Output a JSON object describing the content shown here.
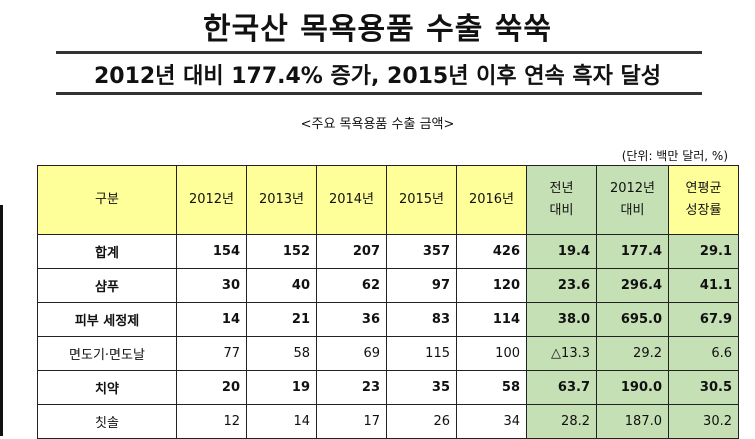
{
  "title": "한국산 목욕용품 수출 쑥쑥",
  "subtitle": "2012년 대비 177.4% 증가, 2015년 이후 연속 흑자 달성",
  "caption": "<주요 목욕용품 수출 금액>",
  "unit_note": "(단위: 백만 달러, %)",
  "table": {
    "headers": [
      "구분",
      "2012년",
      "2013년",
      "2014년",
      "2015년",
      "2016년",
      "전년\n대비",
      "2012년\n대비",
      "연평균\n성장률"
    ],
    "rows": [
      {
        "label": "합계",
        "bold": true,
        "cells": [
          "154",
          "152",
          "207",
          "357",
          "426",
          "19.4",
          "177.4",
          "29.1"
        ]
      },
      {
        "label": "샴푸",
        "bold": true,
        "cells": [
          "30",
          "40",
          "62",
          "97",
          "120",
          "23.6",
          "296.4",
          "41.1"
        ]
      },
      {
        "label": "피부 세정제",
        "bold": true,
        "cells": [
          "14",
          "21",
          "36",
          "83",
          "114",
          "38.0",
          "695.0",
          "67.9"
        ]
      },
      {
        "label": "면도기·면도날",
        "bold": false,
        "cells": [
          "77",
          "58",
          "69",
          "115",
          "100",
          "△13.3",
          "29.2",
          "6.6"
        ]
      },
      {
        "label": "치약",
        "bold": true,
        "cells": [
          "20",
          "19",
          "23",
          "35",
          "58",
          "63.7",
          "190.0",
          "30.5"
        ]
      },
      {
        "label": "칫솔",
        "bold": false,
        "cells": [
          "12",
          "14",
          "17",
          "26",
          "34",
          "28.2",
          "187.0",
          "30.2"
        ]
      }
    ]
  },
  "colors": {
    "header_yellow": "#ffff99",
    "highlight_green": "#c5e0b4"
  }
}
